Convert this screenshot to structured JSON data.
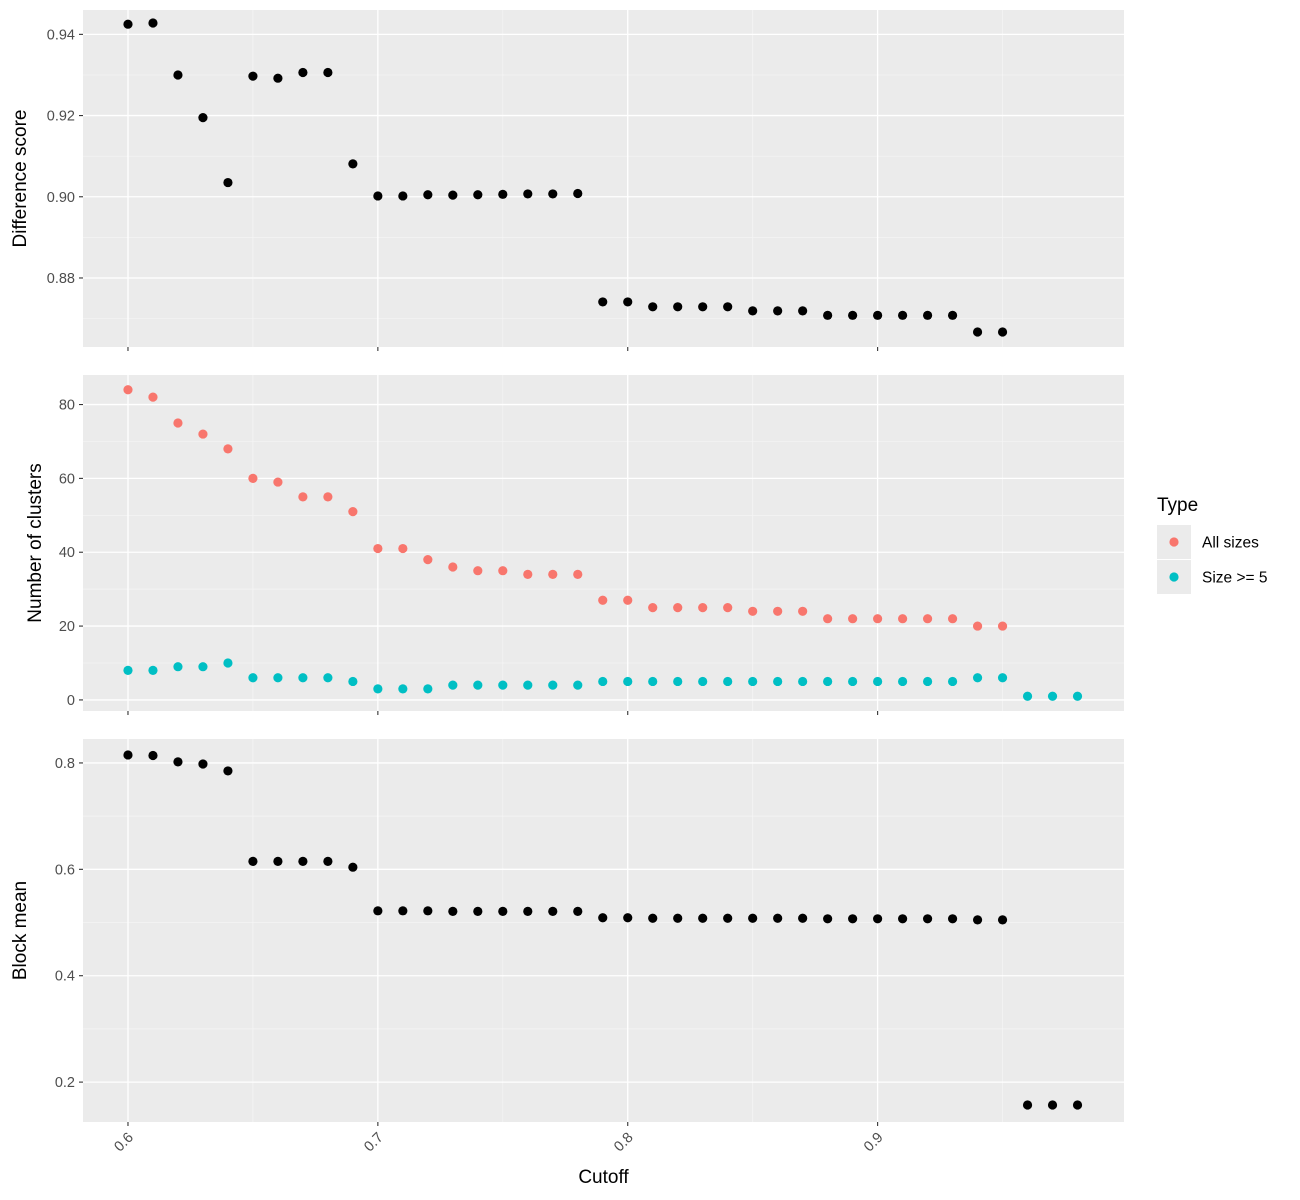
{
  "chart_data": [
    {
      "type": "scatter",
      "panel": "top",
      "ylabel": "Difference score",
      "xlabel": "",
      "ylim": [
        0.863,
        0.946
      ],
      "y_ticks": [
        0.88,
        0.9,
        0.92,
        0.94
      ],
      "y_tick_labels": [
        "0.88",
        "0.90",
        "0.92",
        "0.94"
      ],
      "series": [
        {
          "color": "#000000",
          "x": [
            0.6,
            0.61,
            0.62,
            0.63,
            0.64,
            0.65,
            0.66,
            0.67,
            0.68,
            0.69,
            0.7,
            0.71,
            0.72,
            0.73,
            0.74,
            0.75,
            0.76,
            0.77,
            0.78,
            0.79,
            0.8,
            0.81,
            0.82,
            0.83,
            0.84,
            0.85,
            0.86,
            0.87,
            0.88,
            0.89,
            0.9,
            0.91,
            0.92,
            0.93,
            0.94,
            0.95
          ],
          "y": [
            0.9425,
            0.9428,
            0.93,
            0.9195,
            0.9035,
            0.9297,
            0.9292,
            0.9306,
            0.9306,
            0.9081,
            0.9002,
            0.9002,
            0.9005,
            0.9004,
            0.9005,
            0.9006,
            0.9007,
            0.9007,
            0.9008,
            0.8741,
            0.8741,
            0.8729,
            0.8729,
            0.8729,
            0.8729,
            0.8719,
            0.8719,
            0.8719,
            0.8708,
            0.8708,
            0.8708,
            0.8708,
            0.8708,
            0.8708,
            0.8667,
            0.8667
          ]
        }
      ]
    },
    {
      "type": "scatter",
      "panel": "middle",
      "ylabel": "Number of clusters",
      "xlabel": "",
      "ylim": [
        -3,
        88
      ],
      "y_ticks": [
        0,
        20,
        40,
        60,
        80
      ],
      "y_tick_labels": [
        "0",
        "20",
        "40",
        "60",
        "80"
      ],
      "legend": {
        "title": "Type",
        "position": "right"
      },
      "series": [
        {
          "name": "All sizes",
          "color": "#F8766D",
          "x": [
            0.6,
            0.61,
            0.62,
            0.63,
            0.64,
            0.65,
            0.66,
            0.67,
            0.68,
            0.69,
            0.7,
            0.71,
            0.72,
            0.73,
            0.74,
            0.75,
            0.76,
            0.77,
            0.78,
            0.79,
            0.8,
            0.81,
            0.82,
            0.83,
            0.84,
            0.85,
            0.86,
            0.87,
            0.88,
            0.89,
            0.9,
            0.91,
            0.92,
            0.93,
            0.94,
            0.95
          ],
          "y": [
            84,
            82,
            75,
            72,
            68,
            60,
            59,
            55,
            55,
            51,
            41,
            41,
            38,
            36,
            35,
            35,
            34,
            34,
            34,
            27,
            27,
            25,
            25,
            25,
            25,
            24,
            24,
            24,
            22,
            22,
            22,
            22,
            22,
            22,
            20,
            20
          ]
        },
        {
          "name": "Size >= 5",
          "color": "#00BFC4",
          "x": [
            0.6,
            0.61,
            0.62,
            0.63,
            0.64,
            0.65,
            0.66,
            0.67,
            0.68,
            0.69,
            0.7,
            0.71,
            0.72,
            0.73,
            0.74,
            0.75,
            0.76,
            0.77,
            0.78,
            0.79,
            0.8,
            0.81,
            0.82,
            0.83,
            0.84,
            0.85,
            0.86,
            0.87,
            0.88,
            0.89,
            0.9,
            0.91,
            0.92,
            0.93,
            0.94,
            0.95,
            0.96,
            0.97,
            0.98
          ],
          "y": [
            8,
            8,
            9,
            9,
            10,
            6,
            6,
            6,
            6,
            5,
            3,
            3,
            3,
            4,
            4,
            4,
            4,
            4,
            4,
            5,
            5,
            5,
            5,
            5,
            5,
            5,
            5,
            5,
            5,
            5,
            5,
            5,
            5,
            5,
            6,
            6,
            1,
            1,
            1
          ]
        }
      ]
    },
    {
      "type": "scatter",
      "panel": "bottom",
      "ylabel": "Block mean",
      "xlabel": "Cutoff",
      "xlim": [
        0.582,
        0.9986
      ],
      "x_ticks": [
        0.6,
        0.7,
        0.8,
        0.9
      ],
      "x_tick_labels": [
        "0.6",
        "0.7",
        "0.8",
        "0.9"
      ],
      "ylim": [
        0.125,
        0.845
      ],
      "y_ticks": [
        0.2,
        0.4,
        0.6,
        0.8
      ],
      "y_tick_labels": [
        "0.2",
        "0.4",
        "0.6",
        "0.8"
      ],
      "series": [
        {
          "color": "#000000",
          "x": [
            0.6,
            0.61,
            0.62,
            0.63,
            0.64,
            0.65,
            0.66,
            0.67,
            0.68,
            0.69,
            0.7,
            0.71,
            0.72,
            0.73,
            0.74,
            0.75,
            0.76,
            0.77,
            0.78,
            0.79,
            0.8,
            0.81,
            0.82,
            0.83,
            0.84,
            0.85,
            0.86,
            0.87,
            0.88,
            0.89,
            0.9,
            0.91,
            0.92,
            0.93,
            0.94,
            0.95,
            0.96,
            0.97,
            0.98
          ],
          "y": [
            0.815,
            0.814,
            0.802,
            0.798,
            0.785,
            0.615,
            0.615,
            0.615,
            0.615,
            0.604,
            0.522,
            0.522,
            0.522,
            0.521,
            0.521,
            0.521,
            0.521,
            0.521,
            0.521,
            0.509,
            0.509,
            0.508,
            0.508,
            0.508,
            0.508,
            0.508,
            0.508,
            0.508,
            0.507,
            0.507,
            0.507,
            0.507,
            0.507,
            0.507,
            0.505,
            0.505,
            0.157,
            0.157,
            0.157
          ]
        }
      ]
    }
  ]
}
